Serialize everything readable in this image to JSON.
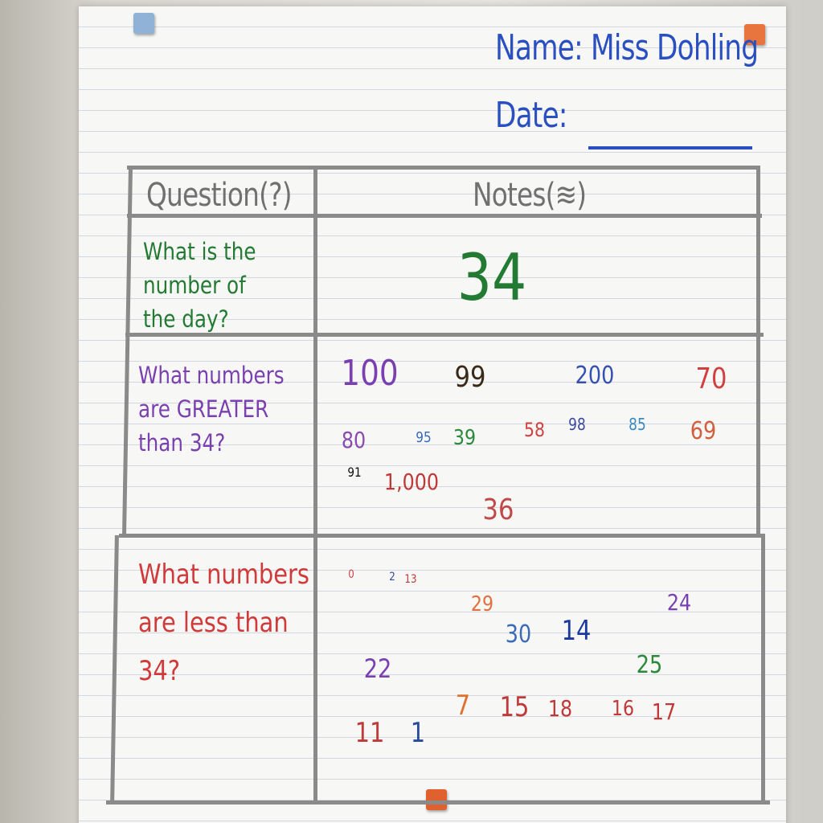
{
  "header": {
    "name": "Name: Miss Dohling",
    "date": "Date:"
  },
  "table": {
    "columns": [
      "Question(?)",
      "Notes(≋)"
    ],
    "rows": [
      {
        "question": [
          "What is the",
          "number of",
          "the day?"
        ],
        "notes": [
          "34"
        ]
      },
      {
        "question": [
          "What numbers",
          "are GREATER",
          "than 34?"
        ],
        "notes": [
          "100",
          "99",
          "200",
          "70",
          "80",
          "95",
          "39",
          "58",
          "98",
          "85",
          "69",
          "91",
          "1,000",
          "36"
        ]
      },
      {
        "question": [
          "What numbers",
          "are less than",
          "34?"
        ],
        "notes": [
          "0",
          "2",
          "13",
          "29",
          "30",
          "14",
          "24",
          "22",
          "25",
          "7",
          "15",
          "18",
          "16",
          "17",
          "11",
          "1"
        ]
      }
    ]
  }
}
